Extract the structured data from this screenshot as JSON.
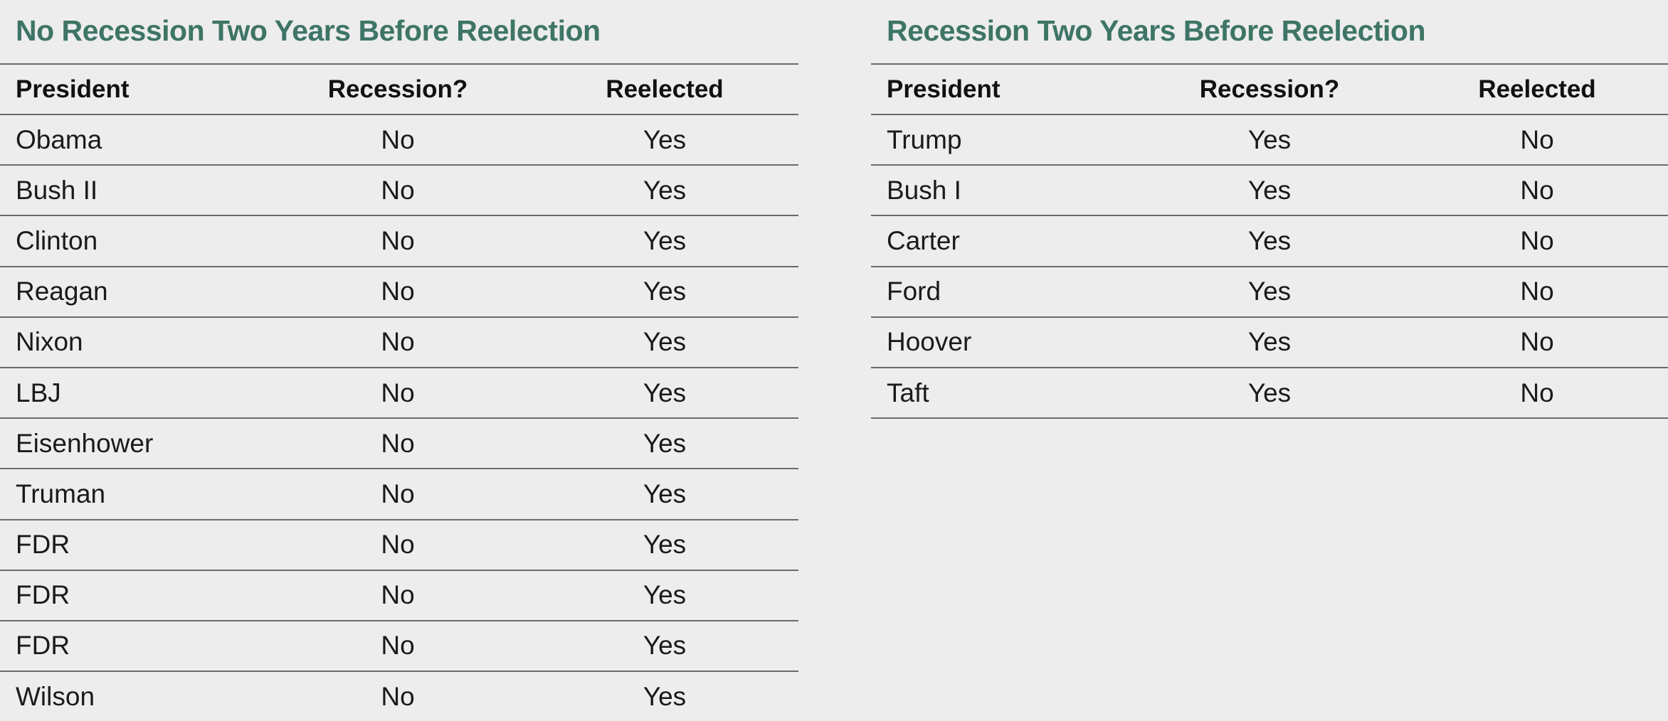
{
  "chart_data": [
    {
      "type": "table",
      "title": "No Recession Two Years Before Reelection",
      "columns": [
        "President",
        "Recession?",
        "Reelected"
      ],
      "rows": [
        [
          "Obama",
          "No",
          "Yes"
        ],
        [
          "Bush II",
          "No",
          "Yes"
        ],
        [
          "Clinton",
          "No",
          "Yes"
        ],
        [
          "Reagan",
          "No",
          "Yes"
        ],
        [
          "Nixon",
          "No",
          "Yes"
        ],
        [
          "LBJ",
          "No",
          "Yes"
        ],
        [
          "Eisenhower",
          "No",
          "Yes"
        ],
        [
          "Truman",
          "No",
          "Yes"
        ],
        [
          "FDR",
          "No",
          "Yes"
        ],
        [
          "FDR",
          "No",
          "Yes"
        ],
        [
          "FDR",
          "No",
          "Yes"
        ],
        [
          "Wilson",
          "No",
          "Yes"
        ]
      ]
    },
    {
      "type": "table",
      "title": "Recession Two Years Before Reelection",
      "columns": [
        "President",
        "Recession?",
        "Reelected"
      ],
      "rows": [
        [
          "Trump",
          "Yes",
          "No"
        ],
        [
          "Bush I",
          "Yes",
          "No"
        ],
        [
          "Carter",
          "Yes",
          "No"
        ],
        [
          "Ford",
          "Yes",
          "No"
        ],
        [
          "Hoover",
          "Yes",
          "No"
        ],
        [
          "Taft",
          "Yes",
          "No"
        ]
      ]
    }
  ],
  "colors": {
    "title": "#3e7566",
    "rule": "#6a6a6a",
    "background": "#ededed"
  }
}
